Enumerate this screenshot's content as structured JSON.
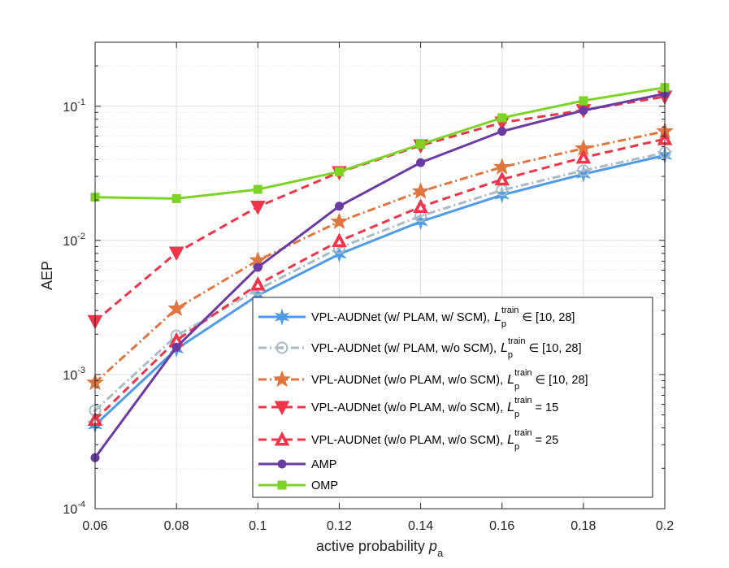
{
  "chart_data": {
    "type": "line",
    "title": "",
    "xlabel": "active probability",
    "xlabel_symbol": "p",
    "xlabel_subscript": "a",
    "ylabel": "AEP",
    "x": [
      0.06,
      0.08,
      0.1,
      0.12,
      0.14,
      0.16,
      0.18,
      0.2
    ],
    "x_tick_labels": [
      "0.06",
      "0.08",
      "0.1",
      "0.12",
      "0.14",
      "0.16",
      "0.18",
      "0.2"
    ],
    "xlim": [
      0.06,
      0.2
    ],
    "yscale": "log",
    "ylim": [
      0.0001,
      0.3
    ],
    "y_ticks": [
      {
        "value": 0.0001,
        "base": "10",
        "exp": "-4"
      },
      {
        "value": 0.001,
        "base": "10",
        "exp": "-3"
      },
      {
        "value": 0.01,
        "base": "10",
        "exp": "-2"
      },
      {
        "value": 0.1,
        "base": "10",
        "exp": "-1"
      }
    ],
    "grid": true,
    "legend_position": "bottom-right",
    "series": [
      {
        "name": "VPL-AUDNet (w/  PLAM, w/  SCM),",
        "sym": "L",
        "sub": "p",
        "sup": "train",
        "suffix": "∈ [10, 28]",
        "color": "#4f9be8",
        "dash": "solid",
        "marker": "star6",
        "values": [
          0.00042,
          0.00155,
          0.0039,
          0.0079,
          0.0138,
          0.0218,
          0.0312,
          0.043
        ]
      },
      {
        "name": "VPL-AUDNet (w/  PLAM, w/o SCM),",
        "sym": "L",
        "sub": "p",
        "sup": "train",
        "suffix": "∈ [10, 28]",
        "color": "#a9bcc6",
        "dash": "dashdot",
        "marker": "circle-dot",
        "values": [
          0.00054,
          0.00195,
          0.0043,
          0.0088,
          0.0152,
          0.0237,
          0.0332,
          0.045
        ]
      },
      {
        "name": "VPL-AUDNet (w/o PLAM, w/o SCM),",
        "sym": "L",
        "sub": "p",
        "sup": "train",
        "suffix": "∈ [10, 28]",
        "color": "#e0753f",
        "dash": "dashdot",
        "marker": "star5",
        "values": [
          0.00087,
          0.0031,
          0.0071,
          0.0138,
          0.0232,
          0.0352,
          0.0485,
          0.065
        ]
      },
      {
        "name": "VPL-AUDNet (w/o PLAM, w/o SCM),",
        "sym": "L",
        "sub": "p",
        "sup": "train",
        "suffix": "= 15",
        "color": "#f0344a",
        "dash": "dash",
        "marker": "triangle-down",
        "values": [
          0.0025,
          0.0081,
          0.0178,
          0.0322,
          0.051,
          0.0755,
          0.0935,
          0.118
        ]
      },
      {
        "name": "VPL-AUDNet (w/o PLAM, w/o SCM),",
        "sym": "L",
        "sub": "p",
        "sup": "train",
        "suffix": "= 25",
        "color": "#f0344a",
        "dash": "dash",
        "marker": "triangle-up",
        "values": [
          0.00046,
          0.0018,
          0.0047,
          0.0099,
          0.0178,
          0.0285,
          0.0415,
          0.057
        ]
      },
      {
        "name": "AMP",
        "color": "#6a3ba3",
        "dash": "solid",
        "marker": "circle-filled",
        "values": [
          0.00024,
          0.0016,
          0.0063,
          0.018,
          0.038,
          0.065,
          0.093,
          0.124
        ]
      },
      {
        "name": "OMP",
        "color": "#7ed327",
        "dash": "solid",
        "marker": "square-filled",
        "values": [
          0.021,
          0.0205,
          0.024,
          0.0325,
          0.052,
          0.082,
          0.11,
          0.138
        ]
      }
    ]
  }
}
